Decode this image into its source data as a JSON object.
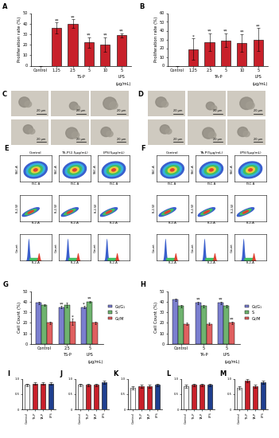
{
  "chart_data": [
    {
      "type": "bar",
      "title": "A",
      "y_label": "Proliferation rate (%)",
      "categories": [
        "Control",
        "1.25",
        "2.5",
        "5",
        "10",
        "5"
      ],
      "group_labels": [
        null,
        "TS-P",
        "TS-P",
        "TS-P",
        "TS-P",
        "LPS"
      ],
      "unit": "(μg/mL)",
      "values": [
        0,
        36,
        40,
        22,
        20,
        29
      ],
      "errors": [
        0,
        5,
        4,
        5,
        7,
        2
      ],
      "significance": [
        null,
        "**",
        "**",
        "**",
        "**",
        "**"
      ],
      "colors": [
        "#ffffff",
        "#c8202a",
        "#c8202a",
        "#c8202a",
        "#c8202a",
        "#c8202a"
      ],
      "ylim": [
        0,
        50
      ],
      "yticks": [
        0,
        10,
        20,
        30,
        40,
        50
      ]
    },
    {
      "type": "bar",
      "title": "B",
      "y_label": "Proliferation rate (%)",
      "categories": [
        "Control",
        "1.25",
        "2.5",
        "5",
        "10",
        "5"
      ],
      "group_labels": [
        null,
        "TA-P",
        "TA-P",
        "TA-P",
        "TA-P",
        "LPS"
      ],
      "unit": "(μg/mL)",
      "values": [
        0,
        19,
        27,
        29,
        26,
        30
      ],
      "errors": [
        0,
        12,
        10,
        8,
        10,
        13
      ],
      "significance": [
        null,
        "*",
        "**",
        "**",
        "**",
        "**"
      ],
      "colors": [
        "#ffffff",
        "#c8202a",
        "#c8202a",
        "#c8202a",
        "#c8202a",
        "#c8202a"
      ],
      "ylim": [
        0,
        60
      ],
      "yticks": [
        0,
        10,
        20,
        30,
        40,
        50,
        60
      ]
    },
    {
      "type": "bar",
      "title": "G",
      "y_label": "Cell Count (%)",
      "categories": [
        "Control",
        "2.5",
        "5"
      ],
      "group_labels": [
        null,
        "TS-P",
        "LPS"
      ],
      "unit": "(μg/mL)",
      "series": [
        {
          "name": "G₀/G₁",
          "color": "#7b7fcf",
          "values": [
            39,
            35,
            35
          ],
          "errors": [
            1,
            1,
            1
          ],
          "significance": [
            null,
            "**",
            "*"
          ]
        },
        {
          "name": "S",
          "color": "#6fb36f",
          "values": [
            37,
            37,
            40
          ],
          "errors": [
            1,
            2,
            1
          ],
          "significance": [
            null,
            null,
            "**"
          ]
        },
        {
          "name": "G₂/M",
          "color": "#e06060",
          "values": [
            20,
            21,
            20
          ],
          "errors": [
            1,
            3,
            1
          ],
          "significance": [
            null,
            "*",
            null
          ]
        }
      ],
      "ylim": [
        0,
        50
      ],
      "yticks": [
        0,
        10,
        20,
        30,
        40,
        50
      ],
      "legend": "right"
    },
    {
      "type": "bar",
      "title": "H",
      "y_label": "Cell Count (%)",
      "categories": [
        "Control",
        "5",
        "5"
      ],
      "group_labels": [
        null,
        "TA-P",
        "LPS"
      ],
      "unit": "(μg/mL)",
      "series": [
        {
          "name": "G₀/G₁",
          "color": "#7b7fcf",
          "values": [
            42,
            39,
            39
          ],
          "errors": [
            1,
            1,
            1
          ],
          "significance": [
            null,
            "**",
            "**"
          ]
        },
        {
          "name": "S",
          "color": "#6fb36f",
          "values": [
            36,
            36,
            36
          ],
          "errors": [
            1,
            1,
            1
          ],
          "significance": [
            null,
            null,
            null
          ]
        },
        {
          "name": "G₂/M",
          "color": "#e06060",
          "values": [
            19,
            19,
            20
          ],
          "errors": [
            1,
            1,
            1
          ],
          "significance": [
            null,
            null,
            "**"
          ]
        }
      ],
      "ylim": [
        0,
        50
      ],
      "yticks": [
        0,
        10,
        20,
        30,
        40,
        50
      ],
      "legend": "right"
    },
    {
      "type": "bar",
      "title": "I",
      "categories": [
        "Control",
        "TS-P",
        "TA-P",
        "LPS"
      ],
      "values": [
        0.8,
        0.85,
        0.85,
        0.85
      ],
      "errors": [
        0.05,
        0.05,
        0.05,
        0.05
      ],
      "colors": [
        "#ffffff",
        "#c8202a",
        "#c8202a",
        "#1f3f8f"
      ],
      "ylim": [
        0,
        1.0
      ],
      "yticks": [
        0,
        0.5,
        1.0
      ]
    },
    {
      "type": "bar",
      "title": "J",
      "categories": [
        "Control",
        "TS-P",
        "TA-P",
        "LPS"
      ],
      "values": [
        0.8,
        0.8,
        0.8,
        0.9
      ],
      "errors": [
        0.05,
        0.05,
        0.05,
        0.05
      ],
      "colors": [
        "#ffffff",
        "#c8202a",
        "#c8202a",
        "#1f3f8f"
      ],
      "ylim": [
        0,
        1.0
      ],
      "yticks": [
        0,
        0.5,
        1.0
      ]
    },
    {
      "type": "bar",
      "title": "K",
      "categories": [
        "Control",
        "TS-P",
        "TA-P",
        "LPS"
      ],
      "values": [
        0.7,
        0.75,
        0.75,
        0.8
      ],
      "errors": [
        0.05,
        0.05,
        0.05,
        0.05
      ],
      "colors": [
        "#ffffff",
        "#c8202a",
        "#c8202a",
        "#1f3f8f"
      ],
      "ylim": [
        0,
        1.0
      ],
      "yticks": [
        0,
        0.5,
        1.0
      ]
    },
    {
      "type": "bar",
      "title": "L",
      "categories": [
        "Control",
        "TS-P",
        "TA-P",
        "LPS"
      ],
      "values": [
        0.75,
        0.8,
        0.8,
        0.8
      ],
      "errors": [
        0.05,
        0.05,
        0.05,
        0.05
      ],
      "colors": [
        "#ffffff",
        "#c8202a",
        "#c8202a",
        "#1f3f8f"
      ],
      "ylim": [
        0,
        1.0
      ],
      "yticks": [
        0,
        0.5,
        1.0
      ]
    },
    {
      "type": "bar",
      "title": "M",
      "categories": [
        "Control",
        "TS-P",
        "TA-P",
        "LPS"
      ],
      "values": [
        0.7,
        0.95,
        0.75,
        0.9
      ],
      "errors": [
        0.05,
        0.05,
        0.05,
        0.05
      ],
      "colors": [
        "#ffffff",
        "#c8202a",
        "#c8202a",
        "#1f3f8f"
      ],
      "ylim": [
        0,
        1.0
      ],
      "yticks": [
        0,
        0.5,
        1.0
      ]
    }
  ],
  "micrographs": [
    {
      "title": "C",
      "scale_bars": [
        "20 μm",
        "20 μm",
        "20 μm",
        "20 μm",
        "20 μm",
        "20 μm"
      ]
    },
    {
      "title": "D",
      "scale_bars": [
        "20 μm",
        "20 μm",
        "20 μm",
        "20 μm",
        "20 μm",
        "20 μm"
      ]
    }
  ],
  "flow_cytometry": [
    {
      "title": "E",
      "columns": [
        "Control",
        "TS-P(2.5μg/mL)",
        "LPS(5μg/mL)"
      ],
      "rows": [
        {
          "type": "scatter",
          "x_label": "FSC-A",
          "y_label": "SSC-A"
        },
        {
          "type": "doublet",
          "x_label": "FL2-A",
          "y_label": "FL2-W"
        },
        {
          "type": "histogram",
          "x_label": "FL2-A",
          "y_label": "Count"
        }
      ]
    },
    {
      "title": "F",
      "columns": [
        "Control",
        "TA-P(5μg/mL)",
        "LPS(5μg/mL)"
      ],
      "rows": [
        {
          "type": "scatter",
          "x_label": "FSC-A",
          "y_label": "SSC-A"
        },
        {
          "type": "doublet",
          "x_label": "FL2-A",
          "y_label": "FL2-W"
        },
        {
          "type": "histogram",
          "x_label": "FL2-A",
          "y_label": "Count"
        }
      ]
    }
  ]
}
